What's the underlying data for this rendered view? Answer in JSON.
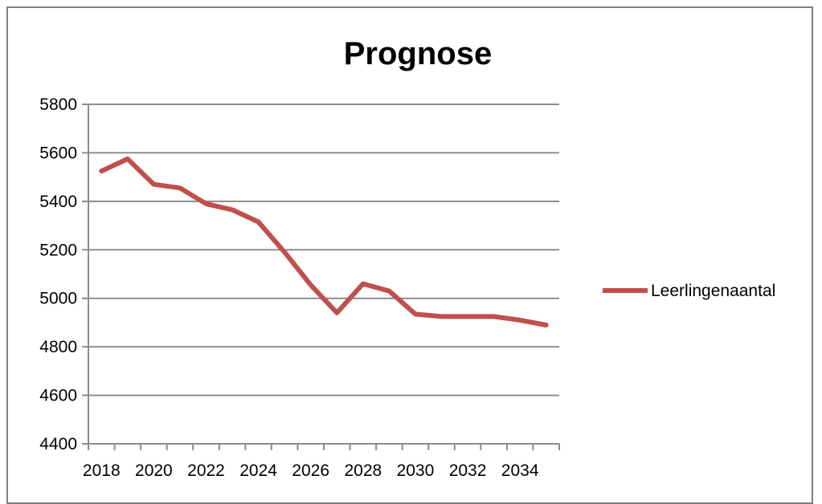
{
  "chart_data": {
    "type": "line",
    "title": "Prognose",
    "xlabel": "",
    "ylabel": "",
    "ylim": [
      4400,
      5800
    ],
    "y_ticks": [
      4400,
      4600,
      4800,
      5000,
      5200,
      5400,
      5600,
      5800
    ],
    "x_ticks": [
      2018,
      2020,
      2022,
      2024,
      2026,
      2028,
      2030,
      2032,
      2034
    ],
    "x": [
      2018,
      2019,
      2020,
      2021,
      2022,
      2023,
      2024,
      2025,
      2026,
      2027,
      2028,
      2029,
      2030,
      2031,
      2032,
      2033,
      2034,
      2035
    ],
    "series": [
      {
        "name": "Leerlingenaantal",
        "color": "#C0504D",
        "values": [
          5525,
          5575,
          5470,
          5455,
          5390,
          5365,
          5315,
          5190,
          5055,
          4940,
          5060,
          5030,
          4935,
          4925,
          4925,
          4925,
          4910,
          4890
        ]
      }
    ],
    "grid": true,
    "legend_position": "right",
    "gridline_color": "#8C8C8C",
    "axis_color": "#8C8C8C"
  }
}
